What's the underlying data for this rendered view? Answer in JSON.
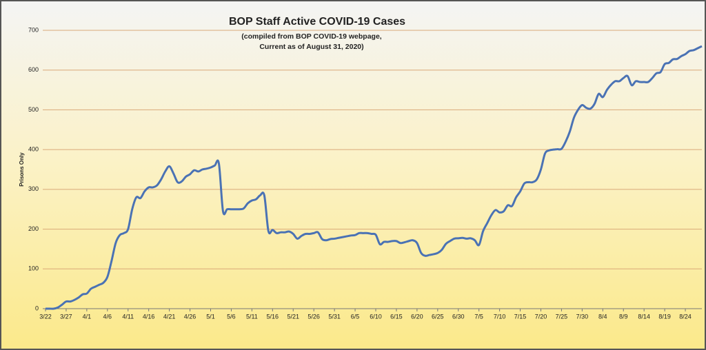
{
  "chart_data": {
    "type": "line",
    "title": "BOP Staff Active COVID-19 Cases",
    "subtitle": [
      "(compiled from BOP COVID-19 webpage,",
      "Current as of August 31, 2020)"
    ],
    "y_label": "Prisons Only",
    "categories": [
      "3/22",
      null,
      null,
      null,
      null,
      "3/27",
      null,
      null,
      null,
      null,
      "4/1",
      null,
      null,
      null,
      null,
      "4/6",
      null,
      null,
      null,
      null,
      "4/11",
      null,
      null,
      null,
      null,
      "4/16",
      null,
      null,
      null,
      null,
      "4/21",
      null,
      null,
      null,
      null,
      "4/26",
      null,
      null,
      null,
      null,
      "5/1",
      null,
      null,
      null,
      null,
      "5/6",
      null,
      null,
      null,
      null,
      "5/11",
      null,
      null,
      null,
      null,
      "5/16",
      null,
      null,
      null,
      null,
      "5/21",
      null,
      null,
      null,
      null,
      "5/26",
      null,
      null,
      null,
      null,
      "5/31",
      null,
      null,
      null,
      null,
      "6/5",
      null,
      null,
      null,
      null,
      "6/10",
      null,
      null,
      null,
      null,
      "6/15",
      null,
      null,
      null,
      null,
      "6/20",
      null,
      null,
      null,
      null,
      "6/25",
      null,
      null,
      null,
      null,
      "6/30",
      null,
      null,
      null,
      null,
      "7/5",
      null,
      null,
      null,
      null,
      "7/10",
      null,
      null,
      null,
      null,
      "7/15",
      null,
      null,
      null,
      null,
      "7/20",
      null,
      null,
      null,
      null,
      "7/25",
      null,
      null,
      null,
      null,
      "7/30",
      null,
      null,
      null,
      null,
      "8/4",
      null,
      null,
      null,
      null,
      "8/9",
      null,
      null,
      null,
      null,
      "8/14",
      null,
      null,
      null,
      null,
      "8/19",
      null,
      null,
      null,
      null,
      "8/24",
      null,
      null,
      null,
      null
    ],
    "series": [
      {
        "name": "Prisons Only",
        "color": "#4a72b4",
        "values": [
          0,
          0,
          0,
          3,
          10,
          18,
          18,
          22,
          28,
          36,
          38,
          50,
          55,
          60,
          65,
          80,
          120,
          165,
          185,
          190,
          200,
          250,
          280,
          278,
          295,
          305,
          305,
          310,
          325,
          345,
          358,
          340,
          318,
          320,
          332,
          338,
          348,
          345,
          350,
          352,
          355,
          360,
          365,
          245,
          250,
          250,
          250,
          250,
          252,
          265,
          272,
          275,
          285,
          285,
          195,
          198,
          190,
          192,
          192,
          194,
          188,
          176,
          183,
          188,
          188,
          190,
          192,
          175,
          172,
          175,
          176,
          178,
          180,
          182,
          184,
          185,
          190,
          190,
          190,
          188,
          186,
          162,
          168,
          168,
          170,
          170,
          165,
          167,
          170,
          172,
          165,
          140,
          133,
          135,
          137,
          140,
          148,
          163,
          170,
          176,
          177,
          178,
          176,
          177,
          172,
          160,
          195,
          215,
          235,
          248,
          242,
          245,
          260,
          258,
          280,
          295,
          315,
          318,
          318,
          325,
          350,
          390,
          398,
          400,
          401,
          402,
          420,
          445,
          480,
          500,
          512,
          505,
          503,
          515,
          540,
          532,
          550,
          563,
          572,
          572,
          580,
          585,
          562,
          572,
          570,
          570,
          570,
          580,
          592,
          595,
          615,
          618,
          627,
          628,
          635,
          640,
          648,
          650,
          655,
          660
        ]
      }
    ],
    "ylim": [
      0,
      700
    ],
    "yticks": [
      0,
      100,
      200,
      300,
      400,
      500,
      600,
      700
    ],
    "grid": true
  }
}
